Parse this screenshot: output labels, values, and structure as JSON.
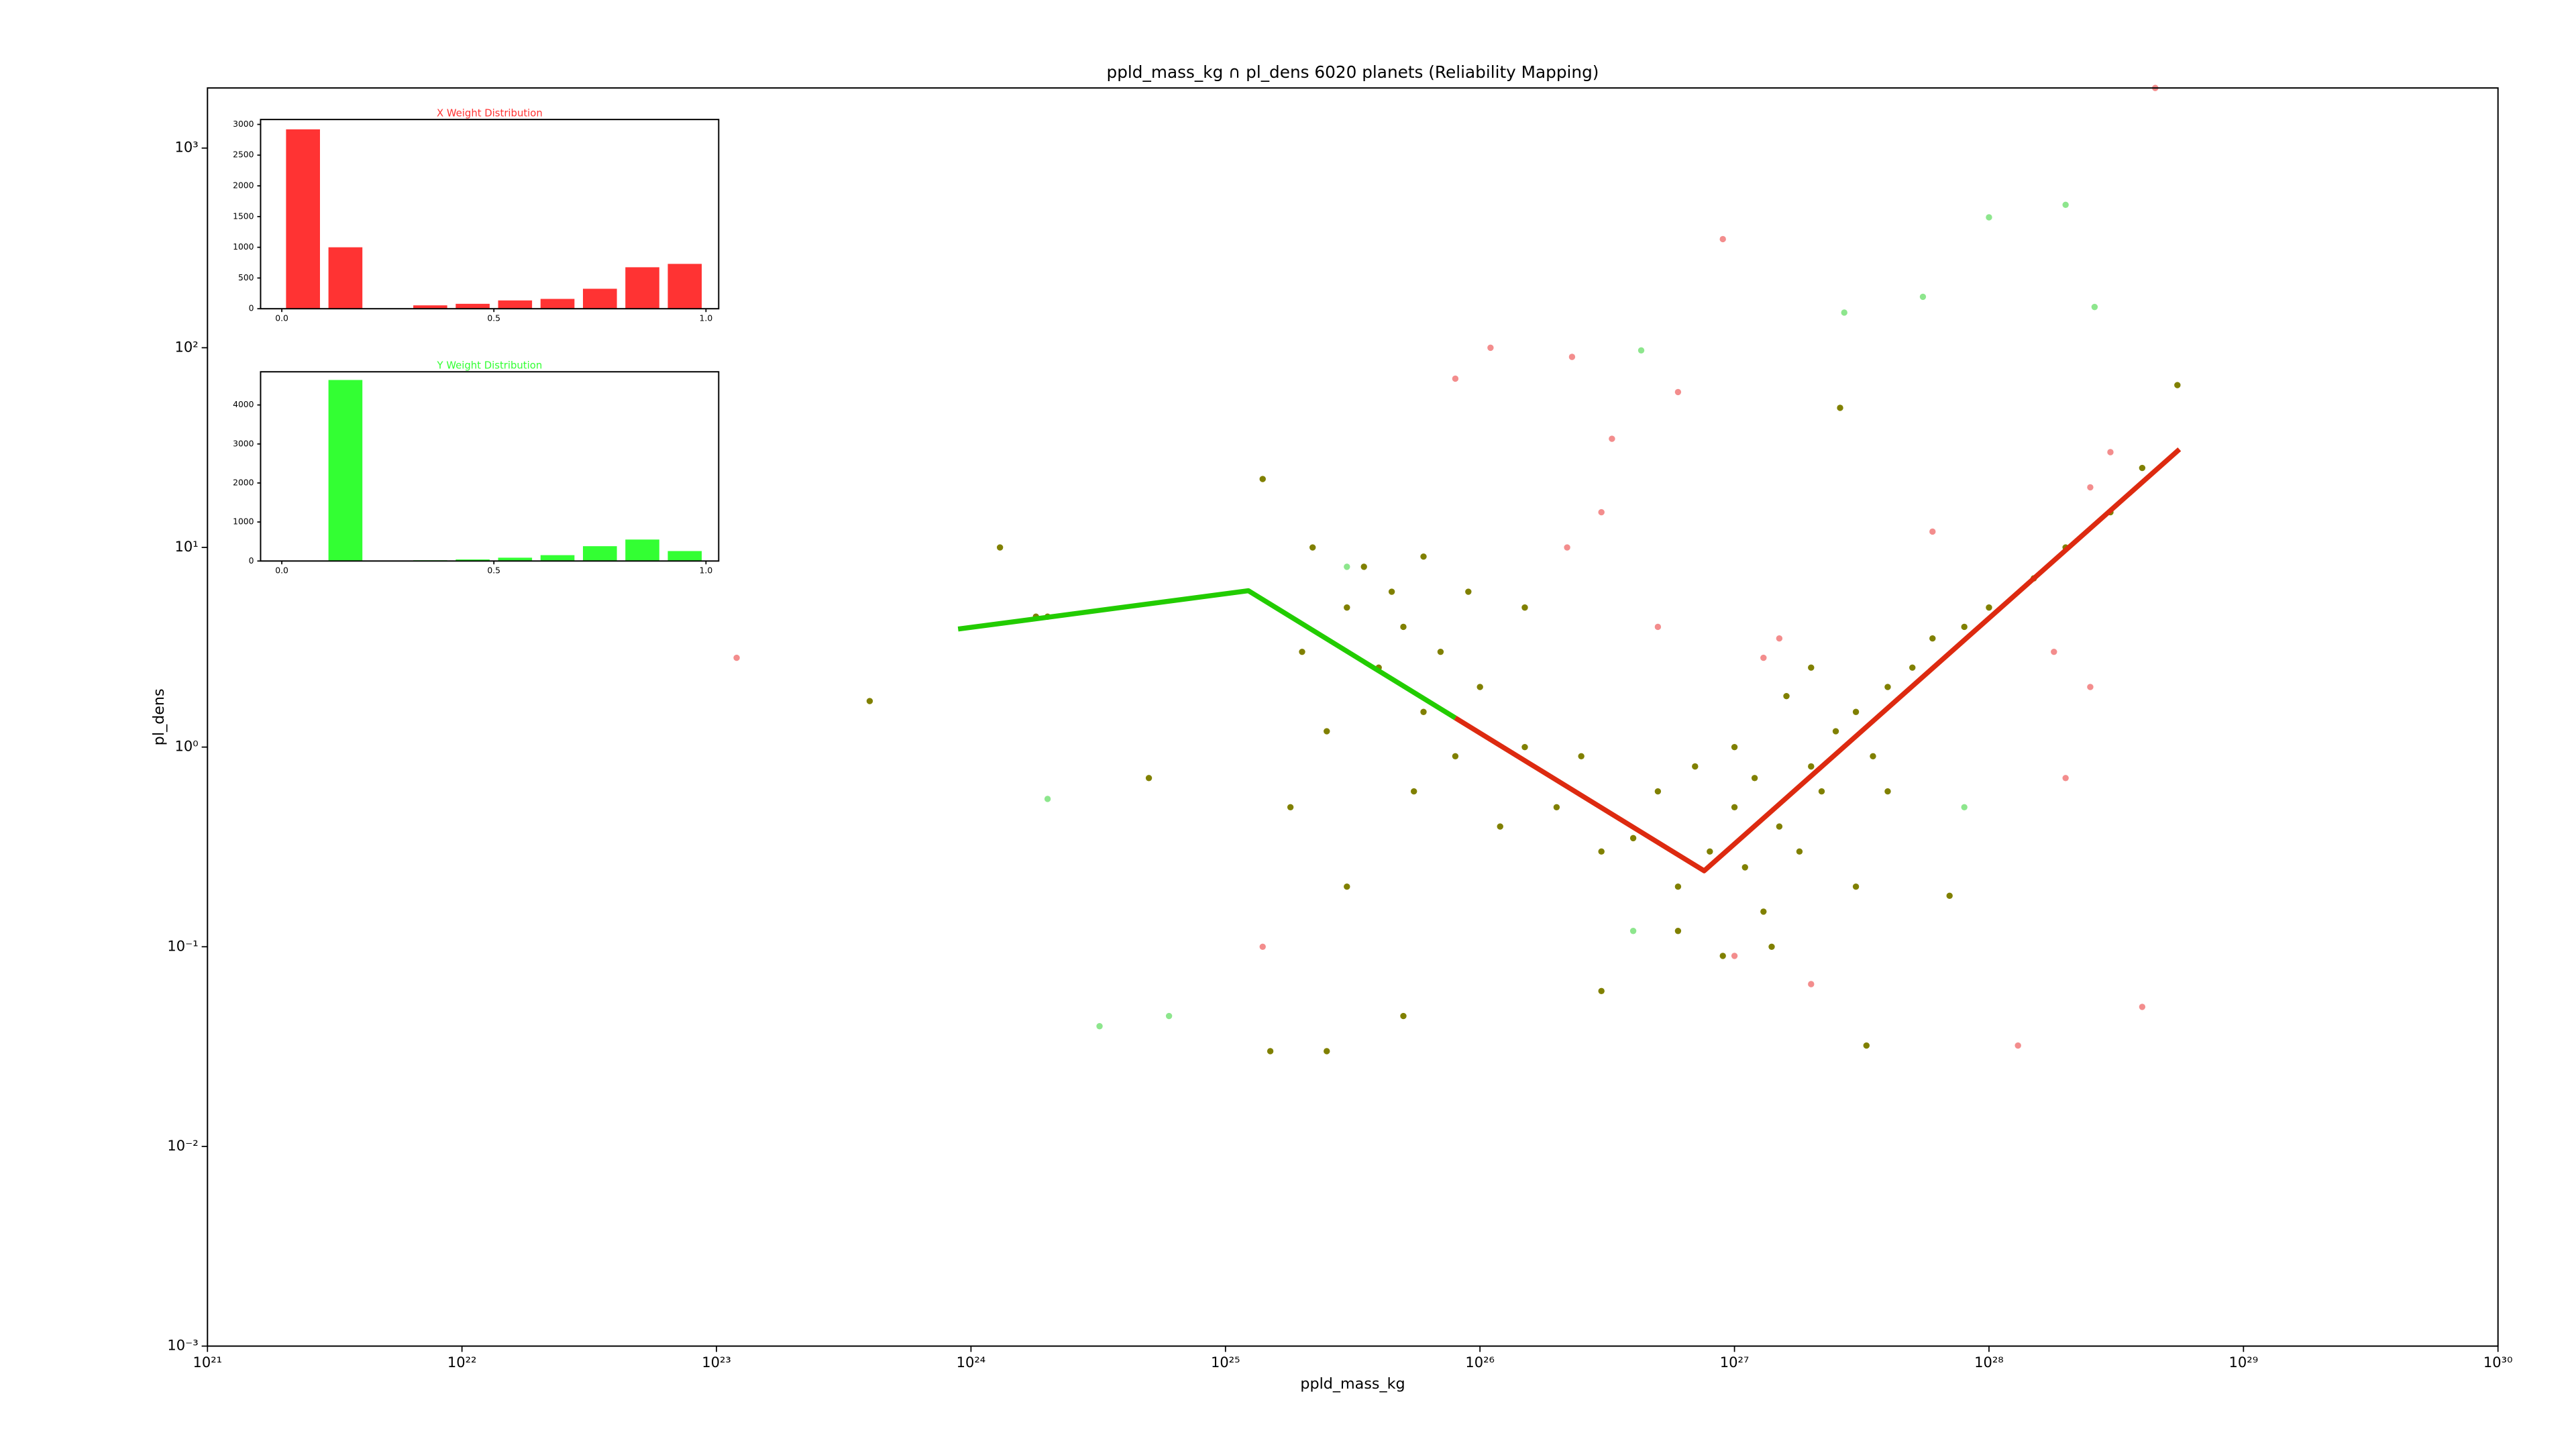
{
  "chart_data": [
    {
      "type": "scatter",
      "title": "ppld_mass_kg ∩ pl_dens 6020 planets (Reliability Mapping)",
      "xlabel": "ppld_mass_kg",
      "ylabel": "pl_dens",
      "xscale": "log",
      "yscale": "log",
      "xlim": [
        1e+21,
        1e+30
      ],
      "ylim": [
        0.001,
        2000
      ],
      "xticks": [
        {
          "value": 1e+21,
          "label": "10²¹"
        },
        {
          "value": 1e+22,
          "label": "10²²"
        },
        {
          "value": 1e+23,
          "label": "10²³"
        },
        {
          "value": 1e+24,
          "label": "10²⁴"
        },
        {
          "value": 1e+25,
          "label": "10²⁵"
        },
        {
          "value": 1e+26,
          "label": "10²⁶"
        },
        {
          "value": 1e+27,
          "label": "10²⁷"
        },
        {
          "value": 1e+28,
          "label": "10²⁸"
        },
        {
          "value": 1e+29,
          "label": "10²⁹"
        },
        {
          "value": 1e+30,
          "label": "10³⁰"
        }
      ],
      "yticks": [
        {
          "value": 0.001,
          "label": "10⁻³"
        },
        {
          "value": 0.01,
          "label": "10⁻²"
        },
        {
          "value": 0.1,
          "label": "10⁻¹"
        },
        {
          "value": 1,
          "label": "10⁰"
        },
        {
          "value": 10,
          "label": "10¹"
        },
        {
          "value": 100,
          "label": "10²"
        },
        {
          "value": 1000,
          "label": "10³"
        }
      ],
      "series": [
        {
          "mode": "markers",
          "color": "#808000",
          "alpha": 1,
          "x": [
            2e+25,
            3e+25,
            4e+25,
            5e+25,
            6e+25,
            3.5e+25,
            2.5e+25,
            7e+25,
            1e+26,
            1.5e+26,
            4.5e+25,
            5.5e+25,
            8e+25,
            1.2e+26,
            2e+26,
            3e+26,
            1.8e+25,
            2.2e+25,
            6e+25,
            9e+25,
            1.5e+26,
            4e+26,
            5e+26,
            6e+26,
            8e+26,
            1e+27,
            1.2e+27,
            1.5e+27,
            2e+27,
            2.5e+27,
            3e+27,
            4e+27,
            5e+27,
            1.1e+27,
            1.3e+27,
            1.8e+27,
            2.2e+27,
            3.5e+27,
            6e+27,
            8e+27,
            1e+28,
            1.5e+28,
            2e+28,
            3e+28,
            4e+28,
            6e+26,
            9e+26,
            1.4e+27,
            3e+25,
            5e+25,
            1.5e+25,
            2.5e+25,
            1.3e+24,
            2e+24,
            1.8e+24,
            4e+23,
            5e+24,
            1.4e+25,
            2.6e+27,
            5.5e+28,
            3e+27,
            4e+27,
            7e+26,
            2.5e+26,
            3.3e+27,
            3e+26,
            1e+27,
            1.6e+27,
            2e+27,
            7e+27
          ],
          "values": [
            3,
            5,
            2.5,
            4,
            1.5,
            8,
            1.2,
            3,
            2,
            1,
            6,
            0.6,
            0.9,
            0.4,
            0.5,
            0.3,
            0.5,
            10,
            9,
            6,
            5,
            0.35,
            0.6,
            0.2,
            0.3,
            0.5,
            0.7,
            0.4,
            0.8,
            1.2,
            1.5,
            2,
            2.5,
            0.25,
            0.15,
            0.3,
            0.6,
            0.9,
            3.5,
            4,
            5,
            7,
            10,
            15,
            25,
            0.12,
            0.09,
            0.1,
            0.2,
            0.045,
            0.03,
            0.03,
            10,
            4.5,
            4.5,
            1.7,
            0.7,
            22,
            50,
            65,
            0.2,
            0.6,
            0.8,
            0.9,
            0.032,
            0.06,
            1,
            1.8,
            2.5,
            0.18
          ]
        },
        {
          "mode": "markers",
          "color": "#f07070",
          "alpha": 0.8,
          "x": [
            1.2e+23,
            8e+25,
            1.1e+26,
            2.3e+26,
            3.3e+26,
            6e+26,
            1.3e+27,
            9e+26,
            6e+27,
            1.8e+28,
            2.5e+28,
            4e+28,
            1.3e+28,
            2e+27,
            1.4e+25,
            1e+27,
            2.5e+28,
            4.5e+28,
            3e+28,
            2e+28,
            5e+26,
            3e+26,
            1.5e+27,
            2.2e+26
          ],
          "values": [
            2.8,
            70,
            100,
            90,
            35,
            60,
            2.8,
            350,
            12,
            3,
            2,
            0.05,
            0.032,
            0.065,
            0.1,
            0.09,
            20,
            2000,
            30,
            0.7,
            4,
            15,
            3.5,
            10
          ]
        },
        {
          "mode": "markers",
          "color": "#70e070",
          "alpha": 0.8,
          "x": [
            1e+28,
            2e+28,
            5.5e+27,
            2.7e+27,
            2.6e+28,
            4.3e+26,
            3.2e+24,
            2e+24,
            6e+24,
            8e+27,
            4e+26,
            3e+25
          ],
          "values": [
            450,
            520,
            180,
            150,
            160,
            97,
            0.04,
            0.55,
            0.045,
            0.5,
            0.12,
            8
          ]
        },
        {
          "mode": "lines",
          "color": "#22cc00",
          "alpha": 1,
          "x": [
            8.9e+23,
            1.23e+25,
            8e+25
          ],
          "values": [
            3.9,
            6.07,
            1.4
          ]
        },
        {
          "mode": "lines",
          "color": "#dd2a10",
          "alpha": 1,
          "x": [
            8e+25,
            7.6e+26,
            5.6e+28
          ],
          "values": [
            1.4,
            0.24,
            31
          ]
        }
      ]
    },
    {
      "type": "histogram",
      "title": "X Weight Distribution",
      "color": "#ff3333",
      "bins": [
        0,
        0.1,
        0.2,
        0.3,
        0.4,
        0.5,
        0.6,
        0.7,
        0.8,
        0.9,
        1
      ],
      "values": [
        2920,
        1000,
        0,
        55,
        80,
        135,
        160,
        325,
        675,
        730
      ],
      "xlim": [
        -0.05,
        1.03
      ],
      "ylim": [
        0,
        3080
      ],
      "xticks": [
        {
          "value": 0,
          "label": "0.0"
        },
        0.5,
        {
          "value": 1,
          "label": "1.0"
        }
      ],
      "yticks": [
        0,
        500,
        1000,
        1500,
        2000,
        2500,
        3000
      ]
    },
    {
      "type": "histogram",
      "title": "Y Weight Distribution",
      "color": "#33ff33",
      "bins": [
        0,
        0.1,
        0.2,
        0.3,
        0.4,
        0.5,
        0.6,
        0.7,
        0.8,
        0.9,
        1
      ],
      "values": [
        0,
        4640,
        0,
        20,
        40,
        85,
        150,
        380,
        550,
        255
      ],
      "xlim": [
        -0.05,
        1.03
      ],
      "ylim": [
        0,
        4850
      ],
      "xticks": [
        {
          "value": 0,
          "label": "0.0"
        },
        0.5,
        {
          "value": 1,
          "label": "1.0"
        }
      ],
      "yticks": [
        0,
        1000,
        2000,
        3000,
        4000
      ]
    }
  ]
}
